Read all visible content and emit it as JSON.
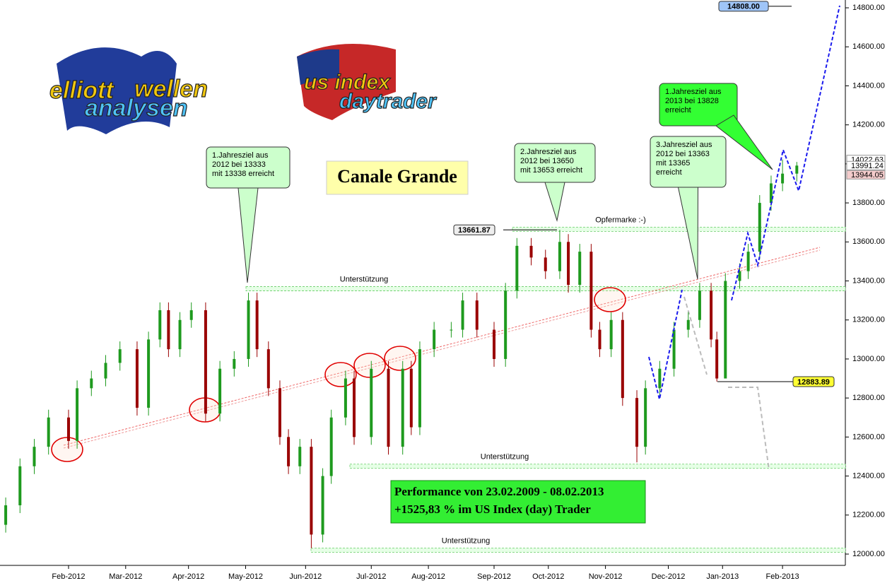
{
  "chart_data": {
    "type": "candlestick",
    "logos": [
      {
        "lines": [
          "elliott",
          "wellen",
          "analysen"
        ]
      },
      {
        "lines": [
          "us index",
          "daytrader"
        ]
      }
    ],
    "title": "Canale Grande",
    "performance": [
      "Performance von 23.02.2009 - 08.02.2013",
      "+1525,83 % im US Index (day) Trader"
    ],
    "callouts": [
      {
        "lines": [
          "1.Jahresziel aus",
          "2012 bei 13333",
          "mit 13338 erreicht"
        ]
      },
      {
        "lines": [
          "2.Jahresziel aus",
          "2012 bei 13650",
          "mit 13653 erreicht"
        ]
      },
      {
        "lines": [
          "3.Jahresziel aus",
          "2012 bei 13363",
          "mit 13365",
          "erreicht"
        ]
      },
      {
        "lines": [
          "1.Jahresziel aus",
          "2013 bei 13828",
          "erreicht"
        ]
      }
    ],
    "levels": [
      {
        "label": "Unterstützung",
        "value": 13360
      },
      {
        "label": "Opfermarke :-)",
        "value": 13665
      },
      {
        "label": "Unterstützung",
        "value": 12450
      },
      {
        "label": "Unterstützung",
        "value": 12020
      }
    ],
    "price_tags": [
      {
        "value": 14808,
        "label": "14808.00",
        "color": "#9fc5f8"
      },
      {
        "value": 13661.87,
        "label": "13661.87",
        "color": "#eeeeee"
      },
      {
        "value": 12883.89,
        "label": "12883.89",
        "color": "#ffff33"
      }
    ],
    "axis_tags": [
      {
        "value": 14022.63,
        "label": "14022.63",
        "color": "#ffffff"
      },
      {
        "value": 13991.24,
        "label": "13991.24",
        "color": "#ffffff"
      },
      {
        "value": 13944.05,
        "label": "13944.05",
        "color": "#f4cccc"
      }
    ],
    "candles": {
      "x": [
        -22,
        -17,
        -12,
        -7,
        0,
        3,
        8,
        13,
        18,
        24,
        28,
        32,
        35,
        39,
        43,
        48,
        53,
        58,
        63,
        66,
        70,
        74,
        77,
        81,
        85,
        89,
        92,
        97,
        100,
        106,
        112,
        117,
        120,
        123,
        128,
        134,
        138,
        143,
        149,
        153,
        157,
        162,
        167,
        172,
        175,
        179,
        183,
        186,
        190,
        194,
        199,
        202,
        207,
        212,
        217,
        221,
        225,
        227,
        230,
        235,
        238,
        242,
        246,
        250,
        255
      ],
      "open": [
        12150,
        12250,
        12450,
        12550,
        12700,
        12580,
        12850,
        12900,
        12980,
        13050,
        12750,
        13100,
        13250,
        13050,
        13200,
        13250,
        12720,
        12950,
        13000,
        13300,
        13050,
        12850,
        12600,
        12450,
        12550,
        12100,
        12400,
        12700,
        12900,
        12600,
        12950,
        12550,
        12950,
        12650,
        13050,
        13150,
        13150,
        13300,
        13150,
        13000,
        13350,
        13580,
        13520,
        13450,
        13600,
        13380,
        13550,
        13150,
        13050,
        13200,
        12800,
        12550,
        12850,
        12950,
        13150,
        13200,
        13350,
        13100,
        12900,
        13400,
        13450,
        13550,
        13800,
        13900,
        13950
      ],
      "high": [
        12290,
        12490,
        12590,
        12740,
        12740,
        12890,
        12940,
        13020,
        13090,
        13090,
        13140,
        13290,
        13290,
        13240,
        13290,
        13290,
        12990,
        13040,
        13340,
        13340,
        13090,
        12890,
        12640,
        12590,
        12590,
        12440,
        12740,
        12940,
        12940,
        12990,
        12990,
        12990,
        12990,
        13090,
        13190,
        13190,
        13340,
        13340,
        13190,
        13390,
        13620,
        13620,
        13560,
        13661.87,
        13640,
        13590,
        13590,
        13190,
        13240,
        13240,
        12840,
        12890,
        12990,
        13190,
        13240,
        13390,
        13390,
        13140,
        13440,
        13490,
        13590,
        13840,
        13940,
        14022.63,
        14010
      ],
      "low": [
        12110,
        12210,
        12410,
        12510,
        12540,
        12540,
        12810,
        12860,
        12940,
        12710,
        12710,
        13060,
        13010,
        13010,
        13160,
        12680,
        12680,
        12910,
        12960,
        13010,
        12810,
        12560,
        12410,
        12410,
        12030,
        12060,
        12360,
        12660,
        12560,
        12560,
        12510,
        12510,
        12610,
        12610,
        13010,
        13110,
        13110,
        13110,
        12960,
        12960,
        13310,
        13480,
        13410,
        13410,
        13340,
        13340,
        13110,
        13010,
        13010,
        12760,
        12470,
        12510,
        12810,
        12910,
        13110,
        13160,
        13060,
        12883.89,
        12900,
        13360,
        13410,
        13510,
        13760,
        13860,
        13910
      ],
      "close": [
        12250,
        12450,
        12550,
        12700,
        12580,
        12850,
        12900,
        12980,
        13050,
        12750,
        13100,
        13250,
        13050,
        13200,
        13250,
        12720,
        12950,
        13000,
        13300,
        13050,
        12850,
        12600,
        12450,
        12550,
        12100,
        12400,
        12700,
        12900,
        12600,
        12950,
        12550,
        12950,
        12650,
        13050,
        13150,
        13150,
        13300,
        13150,
        13000,
        13350,
        13580,
        13520,
        13450,
        13600,
        13380,
        13550,
        13150,
        13050,
        13200,
        12800,
        12550,
        12850,
        12950,
        13150,
        13200,
        13350,
        13100,
        12900,
        13400,
        13450,
        13550,
        13800,
        13900,
        13950,
        13991.24
      ]
    },
    "up_color": "#1e9a1e",
    "down_color": "#9a0000",
    "xlim": [
      -24,
      272
    ],
    "ylim": [
      11942,
      14840
    ],
    "xticks": [
      {
        "value": 0,
        "label": "Feb-2012"
      },
      {
        "value": 20,
        "label": "Mar-2012"
      },
      {
        "value": 42,
        "label": "Apr-2012"
      },
      {
        "value": 62,
        "label": "May-2012"
      },
      {
        "value": 83,
        "label": "Jun-2012"
      },
      {
        "value": 106,
        "label": "Jul-2012"
      },
      {
        "value": 126,
        "label": "Aug-2012"
      },
      {
        "value": 149,
        "label": "Sep-2012"
      },
      {
        "value": 168,
        "label": "Oct-2012"
      },
      {
        "value": 188,
        "label": "Nov-2012"
      },
      {
        "value": 210,
        "label": "Dec-2012"
      },
      {
        "value": 229,
        "label": "Jan-2013"
      },
      {
        "value": 250,
        "label": "Feb-2013"
      }
    ],
    "yticks": [
      {
        "value": 12000,
        "label": "12000.00"
      },
      {
        "value": 12200,
        "label": "12200.00"
      },
      {
        "value": 12400,
        "label": "12400.00"
      },
      {
        "value": 12600,
        "label": "12600.00"
      },
      {
        "value": 12800,
        "label": "12800.00"
      },
      {
        "value": 13000,
        "label": "13000.00"
      },
      {
        "value": 13200,
        "label": "13200.00"
      },
      {
        "value": 13400,
        "label": "13400.00"
      },
      {
        "value": 13600,
        "label": "13600.00"
      },
      {
        "value": 13800,
        "label": "13800.00"
      },
      {
        "value": 14000,
        "label": "14000.00"
      },
      {
        "value": 14200,
        "label": "14200.00"
      },
      {
        "value": 14400,
        "label": "14400.00"
      },
      {
        "value": 14600,
        "label": "14600.00"
      },
      {
        "value": 14800,
        "label": "14800.00"
      }
    ]
  }
}
